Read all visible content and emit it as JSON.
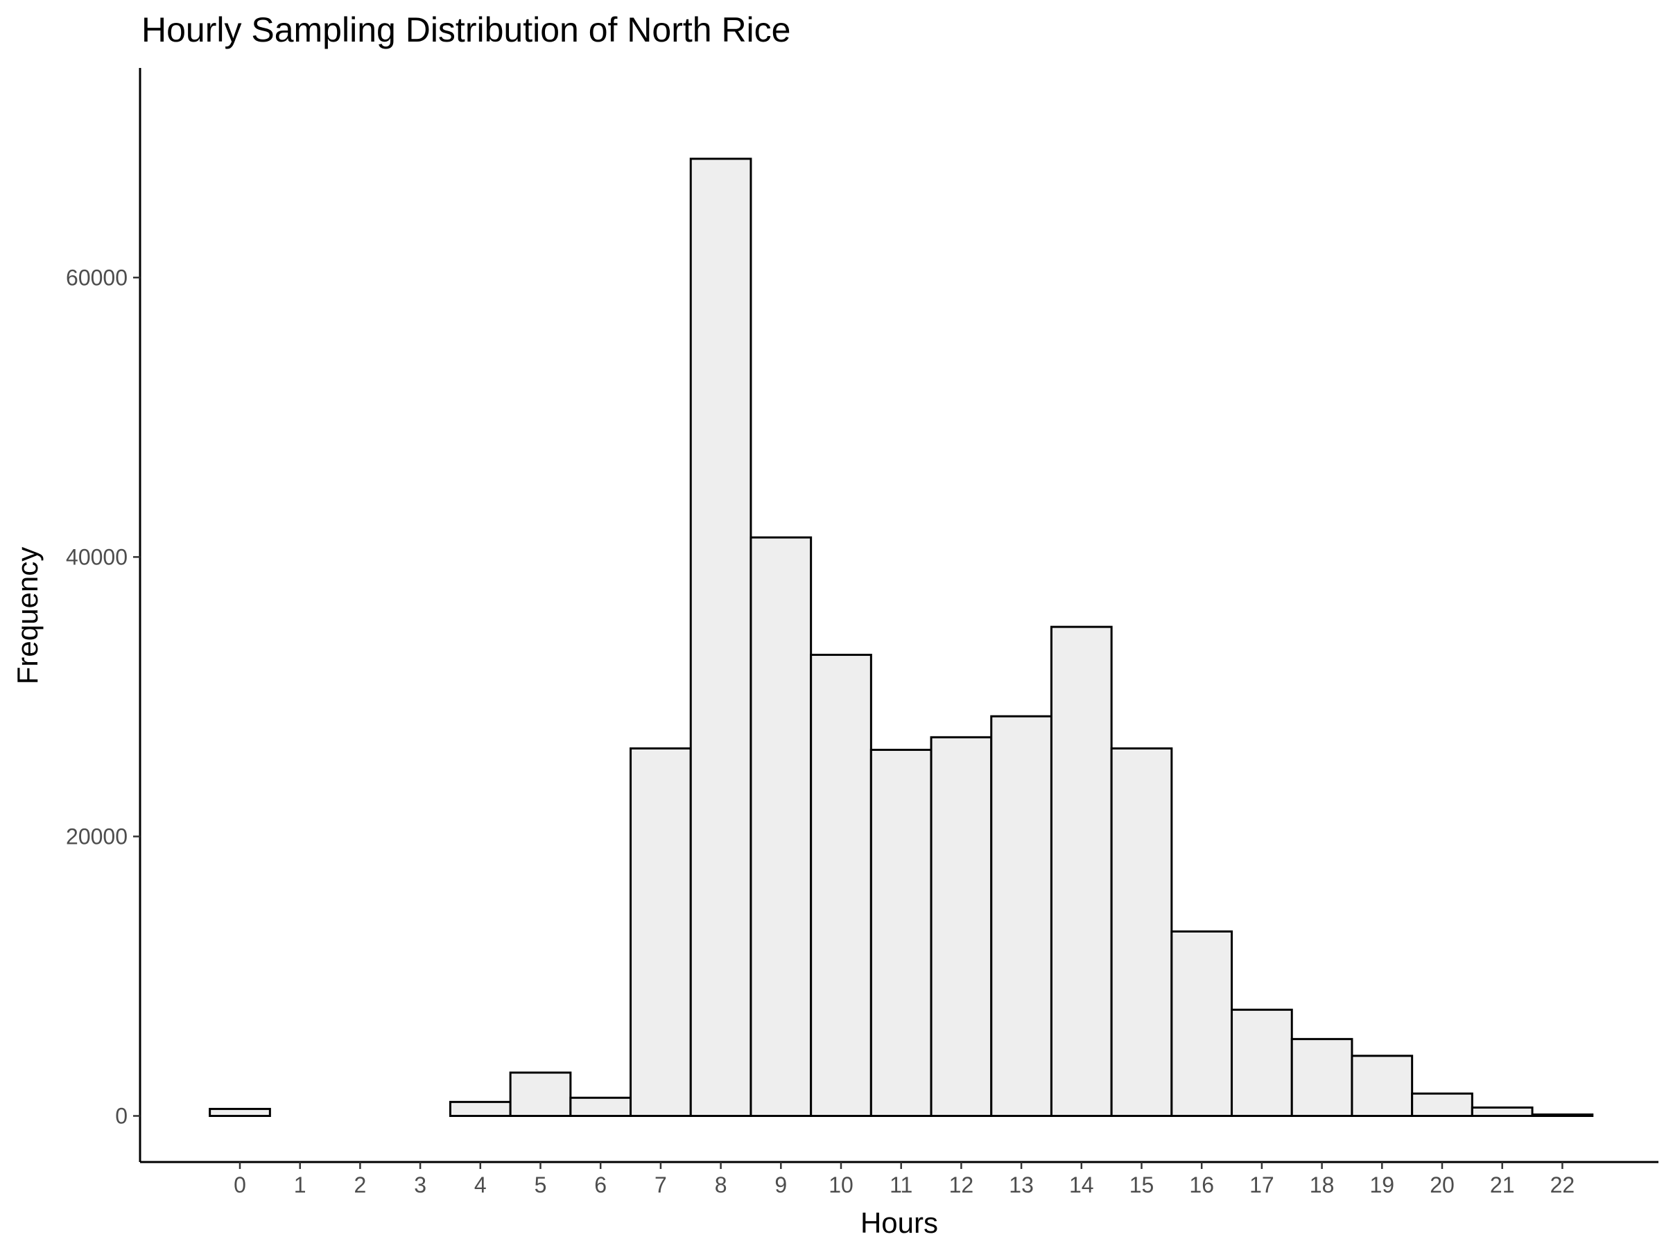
{
  "chart_data": {
    "type": "bar",
    "title": "Hourly Sampling Distribution of North Rice",
    "xlabel": "Hours",
    "ylabel": "Frequency",
    "categories": [
      "0",
      "1",
      "2",
      "3",
      "4",
      "5",
      "6",
      "7",
      "8",
      "9",
      "10",
      "11",
      "12",
      "13",
      "14",
      "15",
      "16",
      "17",
      "18",
      "19",
      "20",
      "21",
      "22"
    ],
    "values": [
      500,
      0,
      0,
      0,
      1000,
      3100,
      1300,
      26300,
      68500,
      41400,
      33000,
      26200,
      27100,
      28600,
      35000,
      26300,
      13200,
      7600,
      5500,
      4300,
      1600,
      600,
      100
    ],
    "yticks": [
      0,
      20000,
      40000,
      60000
    ],
    "ylim": [
      -3300,
      75000
    ],
    "grid": false,
    "legend": "none",
    "bar_fill": "#eeeeee",
    "bar_stroke": "#000000"
  }
}
